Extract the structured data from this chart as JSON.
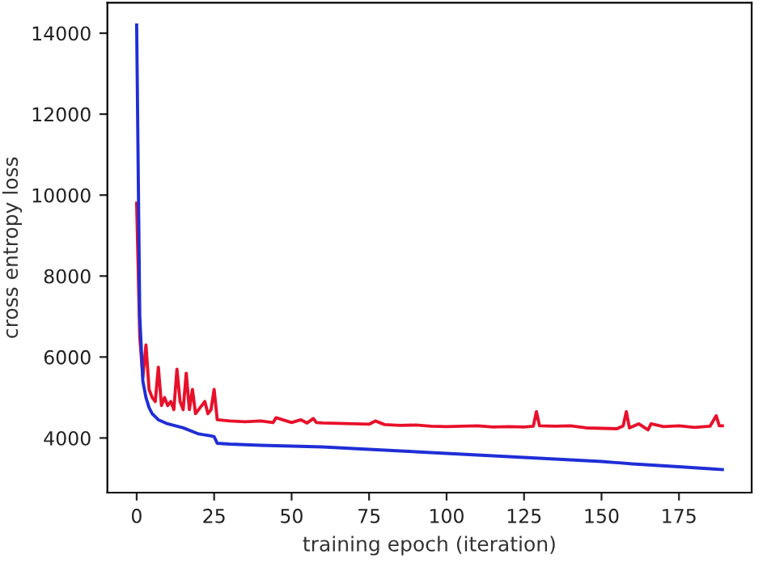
{
  "chart_data": {
    "type": "line",
    "xlabel": "training epoch (iteration)",
    "ylabel": "cross entropy loss",
    "xlim": [
      -9.45,
      198.45
    ],
    "ylim": [
      2650,
      14750
    ],
    "xticks": [
      0,
      25,
      50,
      75,
      100,
      125,
      150,
      175
    ],
    "yticks": [
      4000,
      6000,
      8000,
      10000,
      12000,
      14000
    ],
    "grid": false,
    "legend": false,
    "marker": "none",
    "line_style": "solid",
    "series": [
      {
        "color": "#e8102a",
        "x": [
          0,
          1,
          2,
          3,
          4,
          5,
          6,
          7,
          8,
          9,
          10,
          11,
          12,
          13,
          14,
          15,
          16,
          17,
          18,
          19,
          20,
          21,
          22,
          23,
          24,
          25,
          26,
          30,
          35,
          40,
          44,
          45,
          50,
          53,
          55,
          57,
          58,
          60,
          65,
          70,
          75,
          77,
          80,
          85,
          90,
          95,
          100,
          105,
          110,
          115,
          120,
          125,
          128,
          129,
          130,
          135,
          140,
          145,
          150,
          155,
          157,
          158,
          159,
          162,
          165,
          166,
          170,
          175,
          180,
          185,
          187,
          188,
          189
        ],
        "values": [
          9800,
          6500,
          5500,
          6300,
          5200,
          5000,
          4900,
          5750,
          4800,
          5000,
          4800,
          4900,
          4700,
          5700,
          4900,
          4700,
          5600,
          4700,
          5200,
          4600,
          4700,
          4800,
          4900,
          4600,
          4700,
          5200,
          4450,
          4420,
          4400,
          4420,
          4380,
          4500,
          4380,
          4450,
          4370,
          4480,
          4380,
          4370,
          4360,
          4350,
          4340,
          4420,
          4330,
          4310,
          4320,
          4290,
          4280,
          4290,
          4300,
          4270,
          4280,
          4270,
          4290,
          4650,
          4300,
          4290,
          4300,
          4250,
          4240,
          4230,
          4300,
          4650,
          4250,
          4350,
          4200,
          4350,
          4280,
          4300,
          4260,
          4290,
          4550,
          4300,
          4300
        ]
      },
      {
        "color": "#1f2ed6",
        "x": [
          0,
          1,
          2,
          3,
          4,
          5,
          7,
          10,
          15,
          20,
          24,
          25,
          26,
          30,
          40,
          50,
          60,
          75,
          90,
          100,
          110,
          125,
          140,
          150,
          160,
          175,
          185,
          189
        ],
        "values": [
          14200,
          7000,
          5400,
          5000,
          4750,
          4600,
          4450,
          4350,
          4250,
          4100,
          4050,
          4030,
          3870,
          3850,
          3820,
          3800,
          3780,
          3720,
          3660,
          3620,
          3580,
          3520,
          3460,
          3420,
          3360,
          3290,
          3240,
          3220
        ]
      }
    ]
  }
}
